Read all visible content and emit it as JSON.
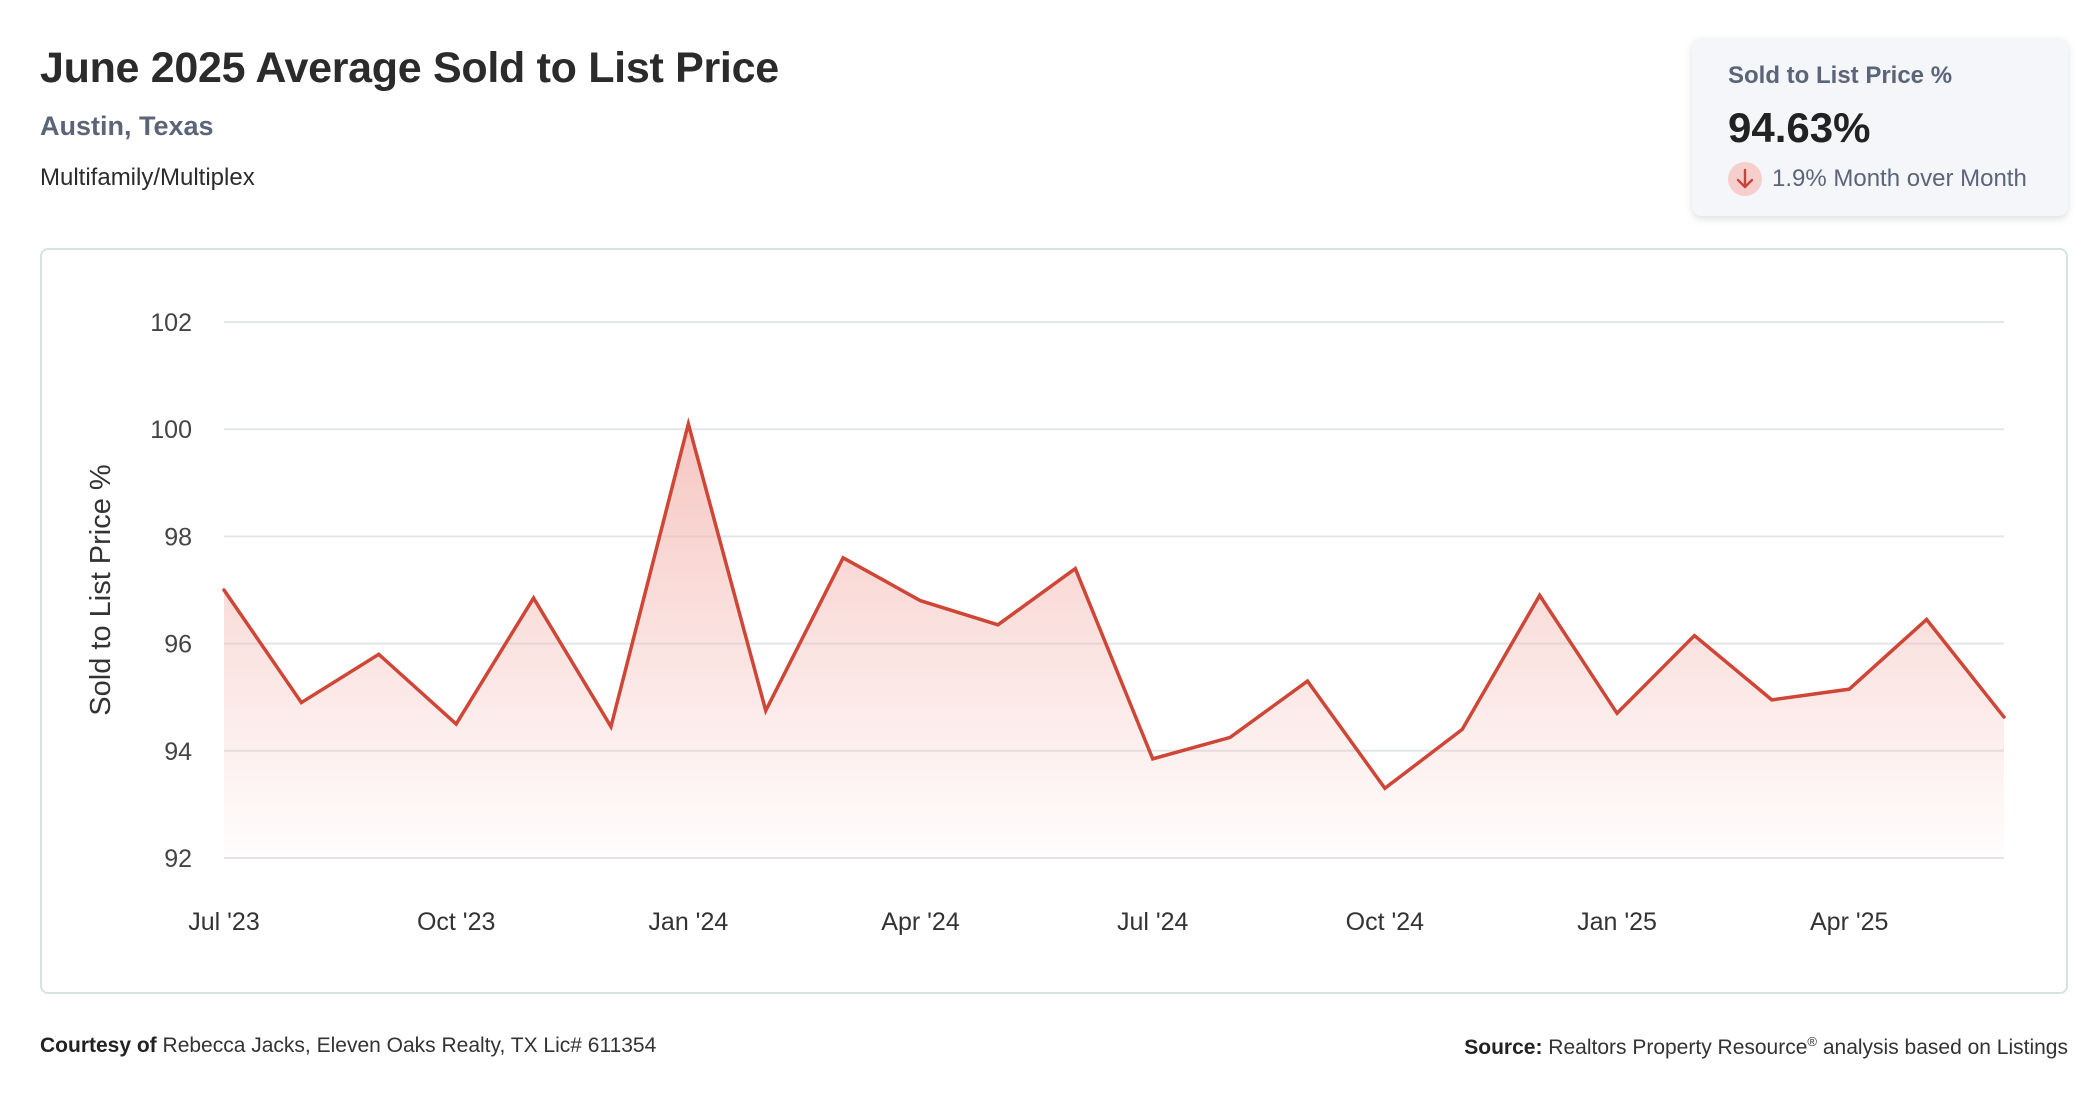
{
  "header": {
    "title": "June 2025 Average Sold to List Price",
    "location": "Austin, Texas",
    "category": "Multifamily/Multiplex"
  },
  "stat_card": {
    "label": "Sold to List Price %",
    "value": "94.63%",
    "change_text": "1.9% Month over Month",
    "direction": "down",
    "direction_icon": "arrow-down-icon"
  },
  "footer": {
    "courtesy_label": "Courtesy of",
    "courtesy_text": "Rebecca Jacks, Eleven Oaks Realty, TX Lic# 611354",
    "source_label": "Source:",
    "source_text_a": "Realtors Property Resource",
    "source_reg": "®",
    "source_text_b": " analysis based on Listings"
  },
  "colors": {
    "line": "#cf4636",
    "area_top": "#f3b4ae",
    "grid": "#e2e6e9",
    "badge": "#f6cfcd"
  },
  "chart_data": {
    "type": "area",
    "ylabel": "Sold to List Price %",
    "ylim": [
      92,
      102
    ],
    "yticks": [
      92,
      94,
      96,
      98,
      100,
      102
    ],
    "grid": "horizontal",
    "x_tick_labels": [
      "Jul '23",
      "Oct '23",
      "Jan '24",
      "Apr '24",
      "Jul '24",
      "Oct '24",
      "Jan '25",
      "Apr '25"
    ],
    "x": [
      "2023-07",
      "2023-08",
      "2023-09",
      "2023-10",
      "2023-11",
      "2023-12",
      "2024-01",
      "2024-02",
      "2024-03",
      "2024-04",
      "2024-05",
      "2024-06",
      "2024-07",
      "2024-08",
      "2024-09",
      "2024-10",
      "2024-11",
      "2024-12",
      "2025-01",
      "2025-02",
      "2025-03",
      "2025-04",
      "2025-05",
      "2025-06"
    ],
    "values": [
      97.0,
      94.9,
      95.8,
      94.5,
      96.85,
      94.45,
      100.1,
      94.75,
      97.6,
      96.8,
      96.35,
      97.4,
      93.85,
      94.25,
      95.3,
      93.3,
      94.4,
      96.9,
      94.7,
      96.15,
      94.95,
      95.15,
      96.45,
      94.63
    ]
  }
}
